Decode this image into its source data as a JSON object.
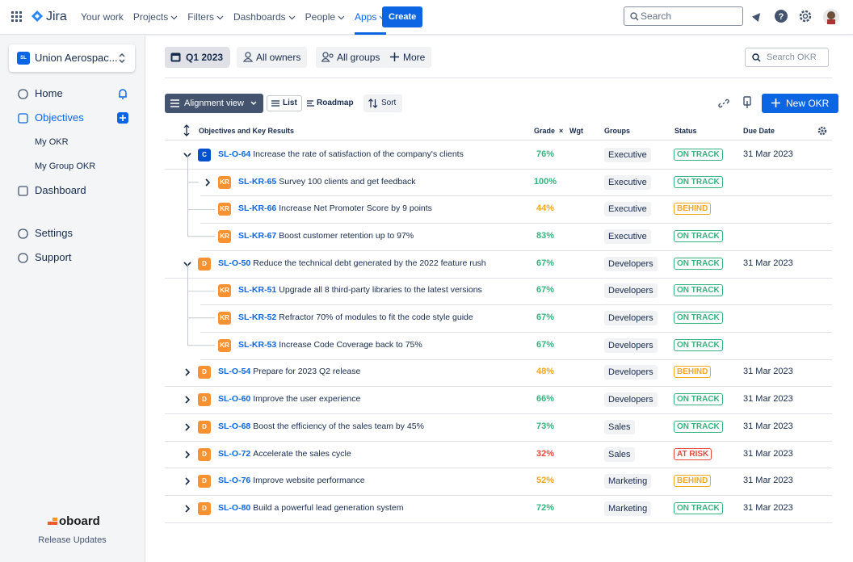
{
  "topnav": {
    "product": "Jira",
    "items": [
      "Your work",
      "Projects",
      "Filters",
      "Dashboards",
      "People",
      "Apps"
    ],
    "create": "Create",
    "search": "Search"
  },
  "sidebar": {
    "project_badge": "SL",
    "project": "Union Aerospac...",
    "nav": [
      "Home",
      "Objectives",
      "My OKR",
      "My Group OKR",
      "Dashboard",
      "Settings",
      "Support"
    ],
    "brand": "oboard",
    "footer": "Release Updates"
  },
  "toolbar": {
    "period": "Q1 2023",
    "owners": "All owners",
    "groups": "All groups",
    "more": "More",
    "search": "Search OKR",
    "view": "Alignment view",
    "list": "List",
    "roadmap": "Roadmap",
    "sort": "Sort",
    "new": "New OKR"
  },
  "table": {
    "headers": {
      "name": "Objectives and Key Results",
      "grade": "Grade",
      "times": "×",
      "weight": "Wgt",
      "groups": "Groups",
      "status": "Status",
      "due": "Due Date"
    },
    "rows": [
      {
        "level": 0,
        "chevron": "down",
        "badge": "C",
        "badge_color": "#0052cc",
        "key": "SL-O-64",
        "title": "Increase the rate of satisfaction of the company's clients",
        "grade": "76%",
        "grade_color": "#36b37e",
        "group": "Executive",
        "status": "ON TRACK",
        "status_color": "#36b37e",
        "due": "31 Mar 2023"
      },
      {
        "level": 1,
        "chevron": "right",
        "badge": "KR",
        "badge_color": "#f79232",
        "key": "SL-KR-65",
        "title": "Survey 100 clients and get feedback",
        "grade": "100%",
        "grade_color": "#36b37e",
        "group": "Executive",
        "status": "ON TRACK",
        "status_color": "#36b37e"
      },
      {
        "level": 1,
        "badge": "KR",
        "badge_color": "#f79232",
        "key": "SL-KR-66",
        "title": "Increase Net Promoter Score by 9 points",
        "grade": "44%",
        "grade_color": "#f5a623",
        "group": "Executive",
        "status": "BEHIND",
        "status_color": "#f5a623"
      },
      {
        "level": 1,
        "badge": "KR",
        "badge_color": "#f79232",
        "key": "SL-KR-67",
        "title": "Boost customer retention up to 97%",
        "grade": "83%",
        "grade_color": "#36b37e",
        "group": "Executive",
        "status": "ON TRACK",
        "status_color": "#36b37e"
      },
      {
        "level": 0,
        "chevron": "down",
        "badge": "D",
        "badge_color": "#f79232",
        "key": "SL-O-50",
        "title": "Reduce the technical debt generated by the 2022 feature rush",
        "grade": "67%",
        "grade_color": "#36b37e",
        "group": "Developers",
        "status": "ON TRACK",
        "status_color": "#36b37e",
        "due": "31 Mar 2023"
      },
      {
        "level": 1,
        "badge": "KR",
        "badge_color": "#f79232",
        "key": "SL-KR-51",
        "title": "Upgrade all 8 third-party libraries to the latest versions",
        "grade": "67%",
        "grade_color": "#36b37e",
        "group": "Developers",
        "status": "ON TRACK",
        "status_color": "#36b37e"
      },
      {
        "level": 1,
        "badge": "KR",
        "badge_color": "#f79232",
        "key": "SL-KR-52",
        "title": "Refractor 70% of modules to fit the code style guide",
        "grade": "67%",
        "grade_color": "#36b37e",
        "group": "Developers",
        "status": "ON TRACK",
        "status_color": "#36b37e"
      },
      {
        "level": 1,
        "badge": "KR",
        "badge_color": "#f79232",
        "key": "SL-KR-53",
        "title": "Increase Code Coverage back to 75%",
        "grade": "67%",
        "grade_color": "#36b37e",
        "group": "Developers",
        "status": "ON TRACK",
        "status_color": "#36b37e"
      },
      {
        "level": 0,
        "chevron": "right",
        "badge": "D",
        "badge_color": "#f79232",
        "key": "SL-O-54",
        "title": "Prepare for 2023 Q2 release",
        "grade": "48%",
        "grade_color": "#f5a623",
        "group": "Developers",
        "status": "BEHIND",
        "status_color": "#f5a623",
        "due": "31 Mar 2023"
      },
      {
        "level": 0,
        "chevron": "right",
        "badge": "D",
        "badge_color": "#f79232",
        "key": "SL-O-60",
        "title": "Improve the user experience",
        "grade": "66%",
        "grade_color": "#36b37e",
        "group": "Developers",
        "status": "ON TRACK",
        "status_color": "#36b37e",
        "due": "31 Mar 2023"
      },
      {
        "level": 0,
        "chevron": "right",
        "badge": "D",
        "badge_color": "#f79232",
        "key": "SL-O-68",
        "title": "Boost the efficiency of the sales team by 45%",
        "grade": "73%",
        "grade_color": "#36b37e",
        "group": "Sales",
        "status": "ON TRACK",
        "status_color": "#36b37e",
        "due": "31 Mar 2023"
      },
      {
        "level": 0,
        "chevron": "right",
        "badge": "D",
        "badge_color": "#f79232",
        "key": "SL-O-72",
        "title": "Accelerate the sales cycle",
        "grade": "32%",
        "grade_color": "#e5493a",
        "group": "Sales",
        "status": "AT RISK",
        "status_color": "#e5493a",
        "due": "31 Mar 2023"
      },
      {
        "level": 0,
        "chevron": "right",
        "badge": "D",
        "badge_color": "#f79232",
        "key": "SL-O-76",
        "title": "Improve website performance",
        "grade": "52%",
        "grade_color": "#f5a623",
        "group": "Marketing",
        "status": "BEHIND",
        "status_color": "#f5a623",
        "due": "31 Mar 2023"
      },
      {
        "level": 0,
        "chevron": "right",
        "badge": "D",
        "badge_color": "#f79232",
        "key": "SL-O-80",
        "title": "Build a powerful lead generation system",
        "grade": "72%",
        "grade_color": "#36b37e",
        "group": "Marketing",
        "status": "ON TRACK",
        "status_color": "#36b37e",
        "due": "31 Mar 2023"
      }
    ]
  }
}
